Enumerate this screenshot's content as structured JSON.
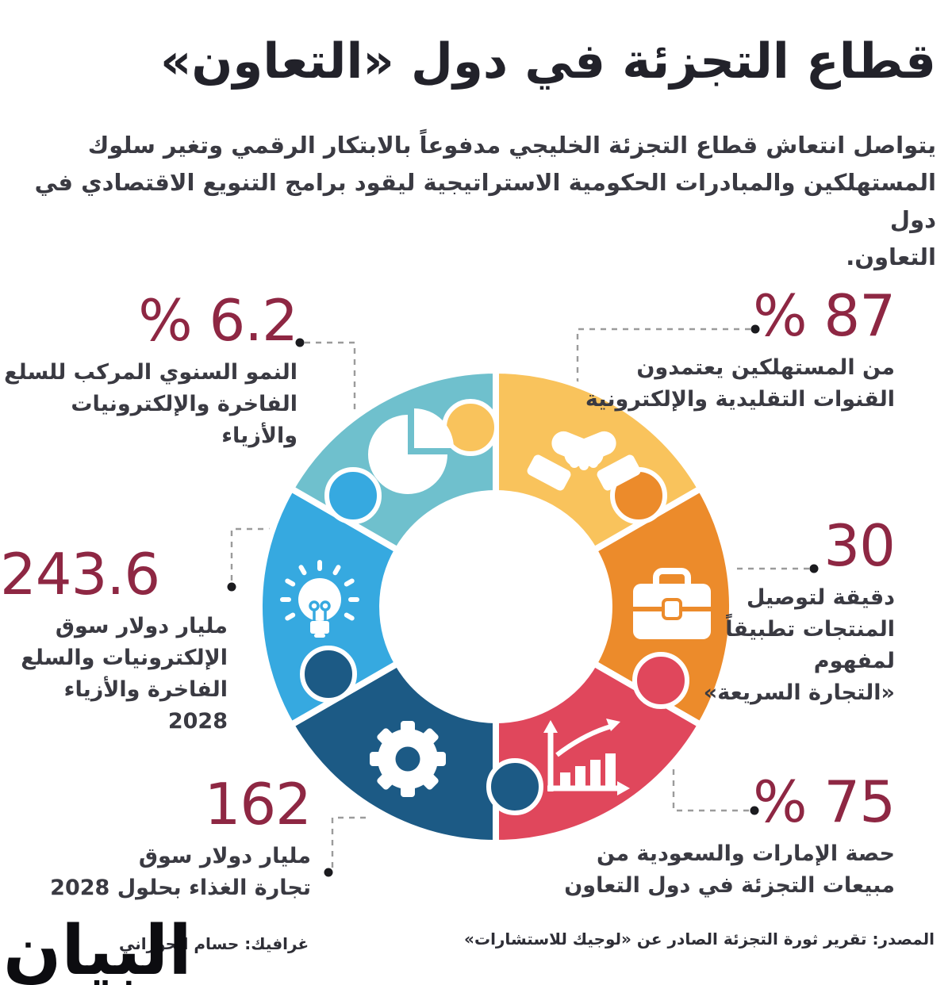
{
  "title": "قطاع التجزئة في دول «التعاون»",
  "intro": {
    "lines": [
      "يتواصل انتعاش قطاع التجزئة الخليجي مدفوعاً بالابتكار الرقمي وتغير سلوك",
      "المستهلكين والمبادرات الحكومية الاستراتيجية ليقود برامج التنويع الاقتصادي في دول",
      "التعاون."
    ]
  },
  "stats": {
    "growth": {
      "value": "% 6.2",
      "lines": [
        "النمو السنوي المركب للسلع",
        "الفاخرة والإلكترونيات والأزياء"
      ]
    },
    "consumers": {
      "value": "% 87",
      "lines": [
        "من المستهلكين يعتمدون",
        "القنوات التقليدية والإلكترونية"
      ]
    },
    "delivery": {
      "value": "30",
      "lines": [
        "دقيقة لتوصيل",
        "المنتجات تطبيقاً",
        "لمفهوم",
        "«التجارة السريعة»"
      ]
    },
    "electronics_market": {
      "value": "243.6",
      "lines": [
        "مليار دولار سوق",
        "الإلكترونيات والسلع",
        "الفاخرة والأزياء 2028"
      ]
    },
    "food_market": {
      "value": "162",
      "lines": [
        "مليار دولار سوق",
        "تجارة الغذاء بحلول 2028"
      ]
    },
    "uae_ksa_share": {
      "value": "% 75",
      "lines": [
        "حصة الإمارات والسعودية من",
        "مبيعات التجزئة في دول التعاون"
      ]
    }
  },
  "segments": [
    {
      "icon": "pie-chart-icon",
      "color": "#6fc0cd"
    },
    {
      "icon": "handshake-icon",
      "color": "#f9c35c"
    },
    {
      "icon": "briefcase-icon",
      "color": "#ec8b2b"
    },
    {
      "icon": "bar-chart-icon",
      "color": "#e0475c"
    },
    {
      "icon": "gear-icon",
      "color": "#1c5a85"
    },
    {
      "icon": "lightbulb-icon",
      "color": "#36a9e0"
    }
  ],
  "colors": {
    "teal": "#6fc0cd",
    "yellow": "#f9c35c",
    "orange": "#ec8b2b",
    "red": "#e0475c",
    "navy": "#1c5a85",
    "blue": "#36a9e0",
    "number": "#8e2743",
    "text": "#3a3a42",
    "dash": "#9b9b9b",
    "dot": "#1b1b1f"
  },
  "footer": {
    "source": "المصدر: تقرير ثورة التجزئة الصادر عن «لوجيك للاستشارات»",
    "credit": "غرافيك: حسام الحوراني",
    "logo": "البيان"
  }
}
